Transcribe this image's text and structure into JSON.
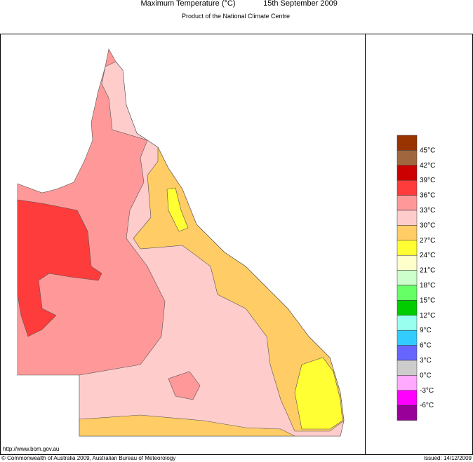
{
  "header": {
    "title": "Maximum Temperature (°C)",
    "date": "15th September 2009",
    "subtitle": "Product of the National Climate Centre"
  },
  "legend": {
    "colors": [
      "#993300",
      "#a0673f",
      "#cc0000",
      "#ff3c3c",
      "#ff9999",
      "#ffcccc",
      "#ffcc66",
      "#ffff33",
      "#ffffcc",
      "#ccffcc",
      "#66ff66",
      "#00cc00",
      "#99ffee",
      "#33ccff",
      "#6666ff",
      "#cccccc",
      "#ffaaff",
      "#ff00ff",
      "#990099"
    ],
    "labels": [
      "45°C",
      "42°C",
      "39°C",
      "36°C",
      "33°C",
      "30°C",
      "27°C",
      "24°C",
      "21°C",
      "18°C",
      "15°C",
      "12°C",
      "9°C",
      "6°C",
      "3°C",
      "0°C",
      "-3°C",
      "-6°C"
    ]
  },
  "footer": {
    "url": "http://www.bom.gov.au",
    "copyright": "© Commonwealth of Australia 2009, Australian Bureau of Meteorology",
    "issued": "Issued: 14/12/2009"
  }
}
